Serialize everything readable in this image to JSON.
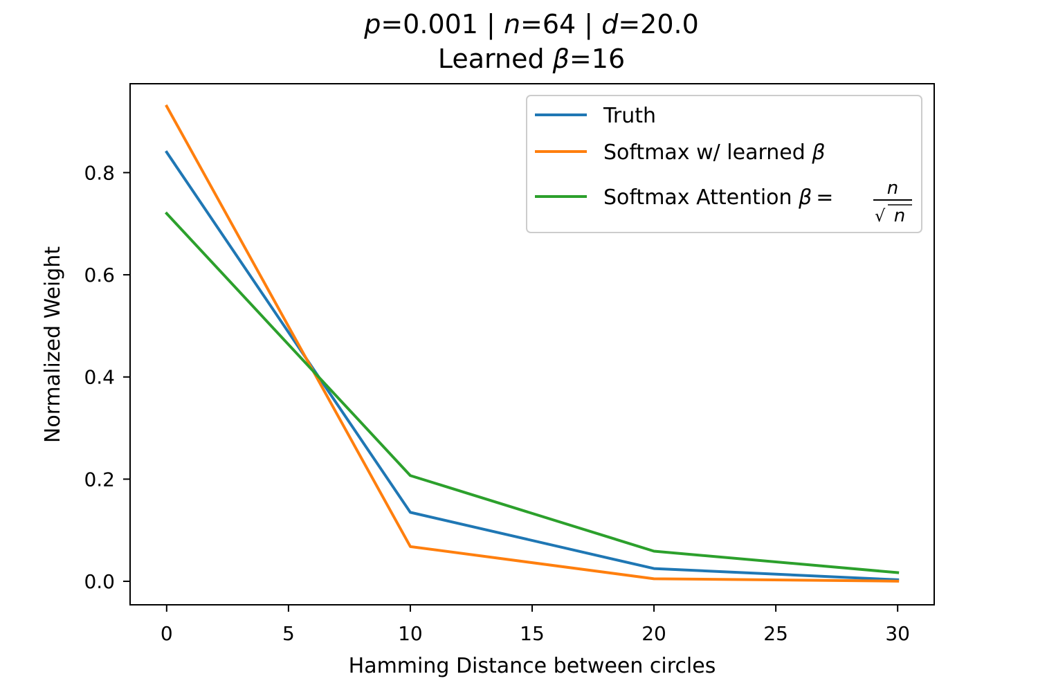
{
  "chart_data": {
    "type": "line",
    "title_line1": "p=0.001 | n=64 | d=20.0",
    "title_line1_parts": {
      "p_sym": "p",
      "p_val": "=0.001 | ",
      "n_sym": "n",
      "n_val": "=64 | ",
      "d_sym": "d",
      "d_val": "=20.0"
    },
    "title_line2": "Learned β=16",
    "title_line2_parts": {
      "prefix": "Learned ",
      "beta": "β",
      "suffix": "=16"
    },
    "xlabel": "Hamming Distance between circles",
    "ylabel": "Normalized Weight",
    "xlim": [
      -1.5,
      31.5
    ],
    "ylim": [
      -0.046,
      0.974
    ],
    "xticks": [
      0,
      5,
      10,
      15,
      20,
      25,
      30
    ],
    "xtick_labels": [
      "0",
      "5",
      "10",
      "15",
      "20",
      "25",
      "30"
    ],
    "yticks": [
      0.0,
      0.2,
      0.4,
      0.6,
      0.8
    ],
    "ytick_labels": [
      "0.0",
      "0.2",
      "0.4",
      "0.6",
      "0.8"
    ],
    "grid": false,
    "legend_position": "top-right",
    "x": [
      0,
      10,
      20,
      30
    ],
    "series": [
      {
        "name": "Truth",
        "color": "#1f77b4",
        "values": [
          0.84,
          0.135,
          0.025,
          0.003
        ]
      },
      {
        "name": "Softmax w/ learned β",
        "color": "#ff7f0e",
        "values": [
          0.93,
          0.068,
          0.005,
          0.0003
        ]
      },
      {
        "name": "Softmax Attention β = n/√n",
        "color": "#2ca02c",
        "values": [
          0.72,
          0.207,
          0.059,
          0.017
        ]
      }
    ],
    "legend_labels": {
      "s0": "Truth",
      "s1_prefix": "Softmax w/ learned ",
      "s1_beta": "β",
      "s2_prefix": "Softmax Attention ",
      "s2_beta": "β",
      "s2_eq": "=",
      "s2_num": "n",
      "s2_sqrt": "√",
      "s2_den": "n"
    }
  }
}
